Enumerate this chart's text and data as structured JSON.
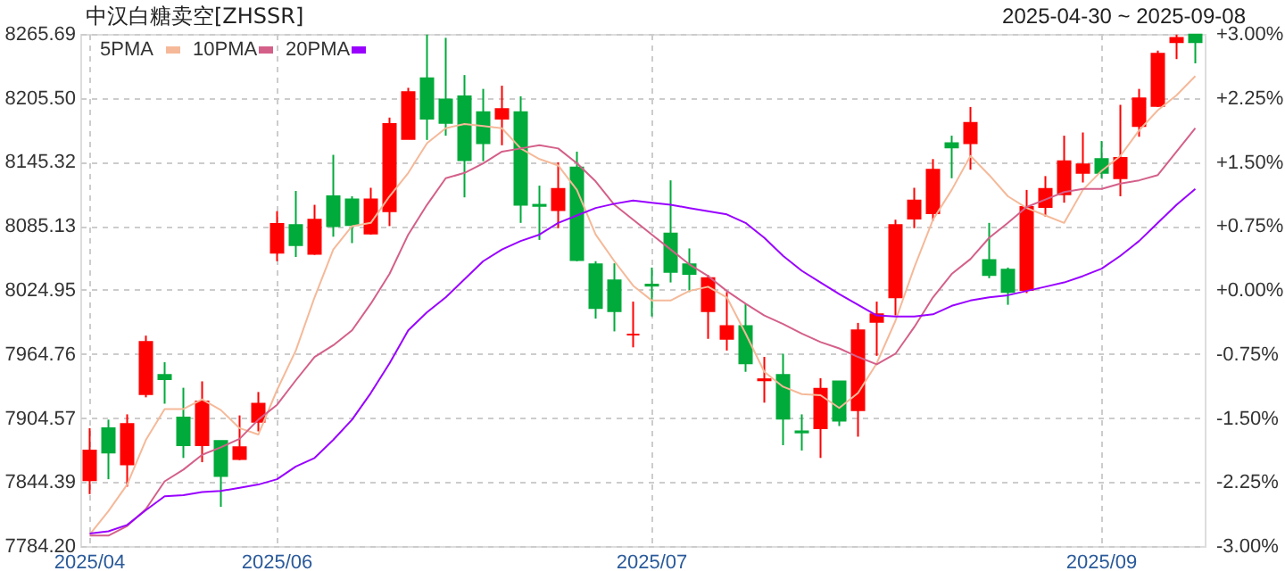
{
  "chart_data": {
    "type": "candlestick",
    "title": "中汉白糖卖空[ZHSSR]",
    "subtitle": "2025-04-30 ~ 2025-09-08",
    "categories": [
      "2025/04",
      null,
      null,
      null,
      null,
      null,
      null,
      null,
      null,
      null,
      "2025/06",
      null,
      null,
      null,
      null,
      null,
      null,
      null,
      null,
      null,
      null,
      null,
      null,
      null,
      null,
      null,
      null,
      null,
      null,
      null,
      "2025/07",
      null,
      null,
      null,
      null,
      null,
      null,
      null,
      null,
      null,
      null,
      null,
      null,
      null,
      null,
      null,
      null,
      null,
      null,
      null,
      null,
      null,
      null,
      null,
      "2025/09",
      null,
      null,
      null,
      null,
      null
    ],
    "ohlc": [
      [
        7846,
        7895,
        7833,
        7874
      ],
      [
        7895,
        7903,
        7847,
        7872
      ],
      [
        7861,
        7908,
        7840,
        7899
      ],
      [
        7927,
        7982,
        7924,
        7976
      ],
      [
        7945,
        7957,
        7918,
        7941
      ],
      [
        7905,
        7933,
        7867,
        7879
      ],
      [
        7879,
        7939,
        7863,
        7920
      ],
      [
        7883,
        7883,
        7821,
        7850
      ],
      [
        7866,
        7907,
        7865,
        7877
      ],
      [
        7901,
        7929,
        7892,
        7918
      ],
      [
        8060,
        8099,
        8052,
        8087
      ],
      [
        8086,
        8118,
        8056,
        8067
      ],
      [
        8059,
        8105,
        8058,
        8091
      ],
      [
        8113,
        8152,
        8075,
        8085
      ],
      [
        8110,
        8113,
        8069,
        8086
      ],
      [
        8078,
        8121,
        8077,
        8110
      ],
      [
        8099,
        8187,
        8085,
        8181
      ],
      [
        8167,
        8215,
        8167,
        8211
      ],
      [
        8224,
        8265,
        8166,
        8186
      ],
      [
        8204,
        8262,
        8170,
        8182
      ],
      [
        8207,
        8227,
        8112,
        8147
      ],
      [
        8192,
        8214,
        8146,
        8163
      ],
      [
        8186,
        8217,
        8161,
        8195
      ],
      [
        8192,
        8207,
        8088,
        8105
      ],
      [
        8105,
        8123,
        8072,
        8104
      ],
      [
        8100,
        8145,
        8083,
        8120
      ],
      [
        8140,
        8155,
        8052,
        8053
      ],
      [
        8049,
        8052,
        7998,
        8008
      ],
      [
        8034,
        8050,
        7986,
        8005
      ],
      [
        7983,
        8014,
        7971,
        7983
      ],
      [
        8030,
        8046,
        8000,
        8029
      ],
      [
        8078,
        8128,
        8032,
        8042
      ],
      [
        8049,
        8064,
        8023,
        8040
      ],
      [
        8005,
        8039,
        7979,
        8036
      ],
      [
        7979,
        8023,
        7968,
        7991
      ],
      [
        7991,
        8012,
        7948,
        7956
      ],
      [
        7940,
        7962,
        7919,
        7941
      ],
      [
        7945,
        7965,
        7879,
        7904
      ],
      [
        7892,
        7908,
        7874,
        7891
      ],
      [
        7895,
        7942,
        7867,
        7932
      ],
      [
        7939,
        7939,
        7897,
        7902
      ],
      [
        7912,
        7994,
        7887,
        7987
      ],
      [
        7995,
        8014,
        7963,
        8002
      ],
      [
        8018,
        8091,
        8001,
        8086
      ],
      [
        8092,
        8121,
        8083,
        8109
      ],
      [
        8097,
        8148,
        8090,
        8138
      ],
      [
        8163,
        8170,
        8130,
        8159
      ],
      [
        8163,
        8197,
        8138,
        8182
      ],
      [
        8053,
        8088,
        8036,
        8039
      ],
      [
        8044,
        8046,
        8011,
        8023
      ],
      [
        8025,
        8119,
        8022,
        8103
      ],
      [
        8103,
        8132,
        8094,
        8120
      ],
      [
        8115,
        8170,
        8107,
        8146
      ],
      [
        8135,
        8173,
        8126,
        8143
      ],
      [
        8148,
        8165,
        8130,
        8135
      ],
      [
        8130,
        8199,
        8113,
        8149
      ],
      [
        8179,
        8214,
        8169,
        8205
      ],
      [
        8198,
        8250,
        8197,
        8247
      ],
      [
        8258,
        8265,
        8242,
        8262
      ],
      [
        8265,
        8265,
        8238,
        8258
      ]
    ],
    "colors": [
      "#ff0000",
      "#00aa3b",
      "#ff0000",
      "#ff0000",
      "#00aa3b",
      "#00aa3b",
      "#ff0000",
      "#00aa3b",
      "#ff0000",
      "#ff0000",
      "#ff0000",
      "#00aa3b",
      "#ff0000",
      "#00aa3b",
      "#00aa3b",
      "#ff0000",
      "#ff0000",
      "#ff0000",
      "#00aa3b",
      "#00aa3b",
      "#00aa3b",
      "#00aa3b",
      "#ff0000",
      "#00aa3b",
      "#00aa3b",
      "#ff0000",
      "#00aa3b",
      "#00aa3b",
      "#00aa3b",
      "#ff0000",
      "#00aa3b",
      "#00aa3b",
      "#00aa3b",
      "#ff0000",
      "#ff0000",
      "#00aa3b",
      "#ff0000",
      "#00aa3b",
      "#00aa3b",
      "#ff0000",
      "#00aa3b",
      "#ff0000",
      "#ff0000",
      "#ff0000",
      "#ff0000",
      "#ff0000",
      "#00aa3b",
      "#ff0000",
      "#00aa3b",
      "#00aa3b",
      "#ff0000",
      "#ff0000",
      "#ff0000",
      "#ff0000",
      "#00aa3b",
      "#ff0000",
      "#ff0000",
      "#ff0000",
      "#ff0000",
      "#00aa3b"
    ],
    "series": [
      {
        "name": "5PMA",
        "type": "line",
        "color": "#f5b999",
        "values": [
          7795,
          7817,
          7842,
          7884,
          7913,
          7913,
          7922,
          7912,
          7895,
          7889,
          7931,
          7968,
          8018,
          8063,
          8085,
          8088,
          8113,
          8135,
          8163,
          8177,
          8181,
          8179,
          8177,
          8158,
          8148,
          8142,
          8119,
          8077,
          8052,
          8029,
          8015,
          8015,
          8024,
          8028,
          8018,
          7984,
          7948,
          7934,
          7927,
          7926,
          7914,
          7928,
          7956,
          7996,
          8046,
          8091,
          8119,
          8151,
          8133,
          8113,
          8102,
          8095,
          8088,
          8119,
          8137,
          8151,
          8175,
          8194,
          8208,
          8226
        ]
      },
      {
        "name": "10PMA",
        "type": "line",
        "color": "#d4608a",
        "values": [
          7794,
          7794,
          7803,
          7819,
          7845,
          7856,
          7870,
          7877,
          7885,
          7903,
          7917,
          7940,
          7962,
          7973,
          7987,
          8012,
          8040,
          8077,
          8105,
          8130,
          8135,
          8144,
          8155,
          8158,
          8161,
          8158,
          8144,
          8127,
          8105,
          8091,
          8077,
          8063,
          8049,
          8038,
          8024,
          8012,
          8001,
          7993,
          7984,
          7976,
          7970,
          7962,
          7955,
          7965,
          7990,
          8018,
          8040,
          8054,
          8074,
          8088,
          8103,
          8110,
          8117,
          8120,
          8120,
          8125,
          8128,
          8133,
          8155,
          8177
        ]
      },
      {
        "name": "20PMA",
        "type": "line",
        "color": "#9900ff",
        "values": [
          7796,
          7798,
          7804,
          7818,
          7831,
          7832,
          7835,
          7836,
          7839,
          7842,
          7847,
          7859,
          7867,
          7884,
          7903,
          7928,
          7956,
          7987,
          8004,
          8018,
          8035,
          8052,
          8063,
          8071,
          8077,
          8088,
          8095,
          8102,
          8106,
          8109,
          8107,
          8105,
          8102,
          8099,
          8096,
          8088,
          8074,
          8057,
          8043,
          8032,
          8021,
          8011,
          8001,
          8000,
          8000,
          8002,
          8010,
          8015,
          8018,
          8020,
          8024,
          8028,
          8032,
          8038,
          8045,
          8057,
          8071,
          8088,
          8105,
          8120
        ]
      }
    ],
    "ylim": [
      7784.2,
      8265.69
    ],
    "yticks": [
      {
        "value": 7784.2,
        "label": "7784.20"
      },
      7844.39,
      7904.57,
      7964.76,
      8024.95,
      8085.13,
      8145.32,
      {
        "value": 8205.5,
        "label": "8205.50"
      },
      8265.69
    ],
    "y2lim": [
      -3,
      3
    ],
    "y2ticks": [
      {
        "value": -3,
        "label": "-3.00%"
      },
      {
        "value": -2.25,
        "label": "-2.25%"
      },
      {
        "value": -1.5,
        "label": "-1.50%"
      },
      {
        "value": -0.75,
        "label": "-0.75%"
      },
      {
        "value": 0,
        "label": "+0.00%"
      },
      {
        "value": 0.75,
        "label": "+0.75%"
      },
      {
        "value": 1.5,
        "label": "+1.50%"
      },
      {
        "value": 2.25,
        "label": "+2.25%"
      },
      {
        "value": 3,
        "label": "+3.00%"
      }
    ],
    "grid": true,
    "legend": "top left"
  }
}
